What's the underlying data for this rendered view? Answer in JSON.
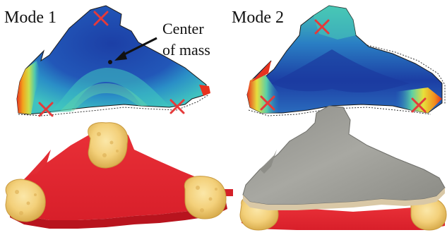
{
  "panels": {
    "mode1": {
      "title": "Mode 1",
      "annotation_line1": "Center",
      "annotation_line2": "of mass"
    },
    "mode2": {
      "title": "Mode 2"
    }
  },
  "colors": {
    "marker": "#e53a3a",
    "heatmap_low": "#1b3fa3",
    "heatmap_mid": "#39c6c2",
    "heatmap_high": "#e8321e",
    "print_red": "#e52a30",
    "sponge": "#f2d27a",
    "metal_plate": "#9a9a94"
  },
  "icons": [
    "cross-marker-icon",
    "arrow-pointer-icon",
    "center-dot-icon"
  ]
}
